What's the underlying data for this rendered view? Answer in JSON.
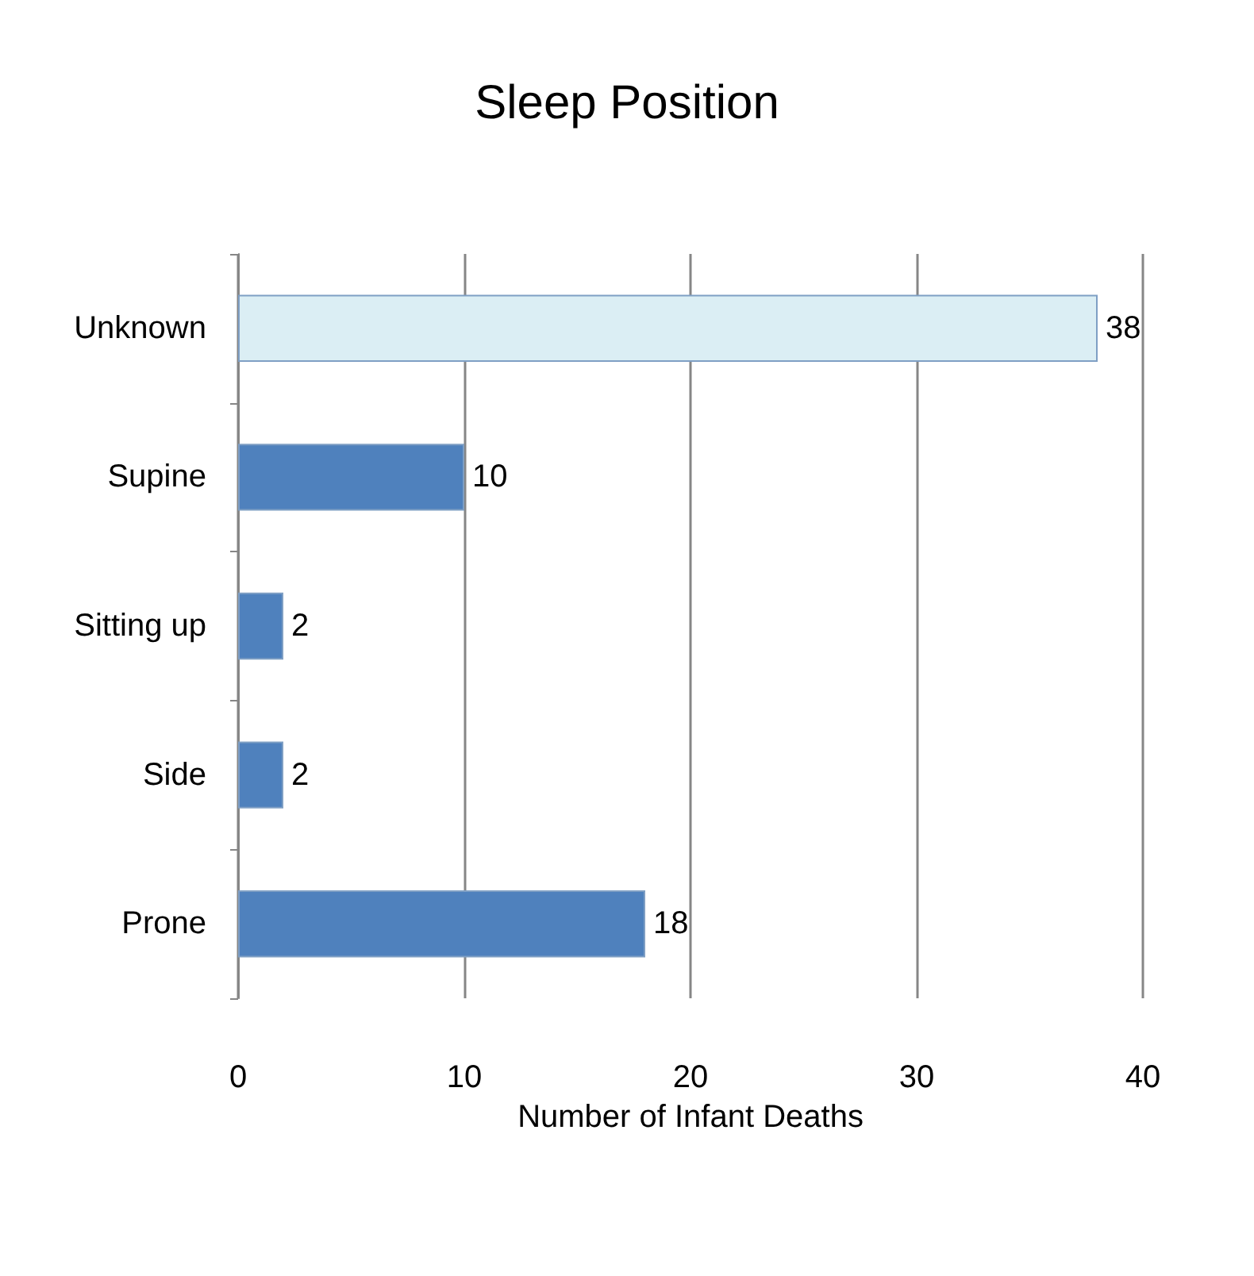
{
  "chart_data": {
    "type": "bar",
    "orientation": "horizontal",
    "title": "Sleep Position",
    "xlabel": "Number of Infant Deaths",
    "categories": [
      "Unknown",
      "Supine",
      "Sitting up",
      "Side",
      "Prone"
    ],
    "values": [
      38,
      10,
      2,
      2,
      18
    ],
    "colors": [
      "#dbeef4",
      "#4f81bd",
      "#4f81bd",
      "#4f81bd",
      "#4f81bd"
    ],
    "xlim": [
      0,
      40
    ],
    "xticks": [
      0,
      10,
      20,
      30,
      40
    ],
    "grid": "x",
    "data_labels": true
  }
}
